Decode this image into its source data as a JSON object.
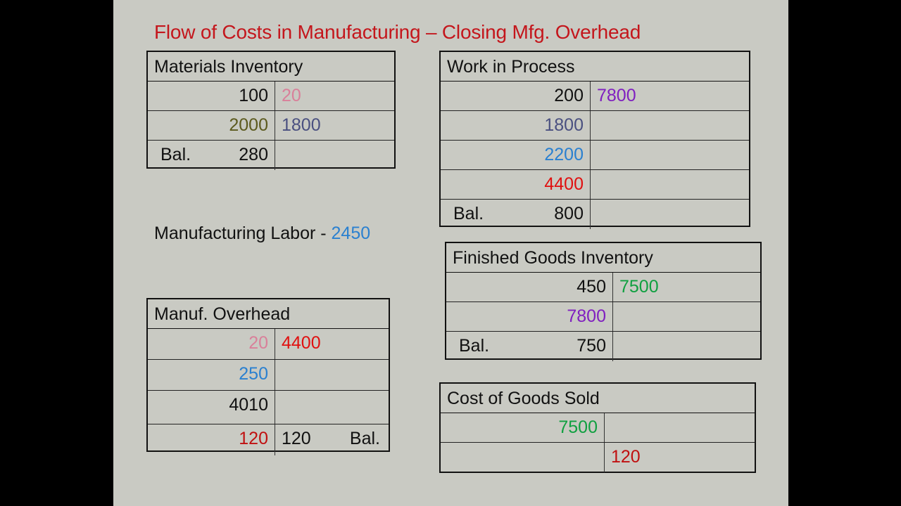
{
  "title": "Flow of Costs in Manufacturing – Closing Mfg. Overhead",
  "labor": {
    "label": "Manufacturing Labor - ",
    "amount": "2450",
    "color": "#2a80d0"
  },
  "accounts": [
    {
      "id": "acct-mat",
      "name": "materials-inventory",
      "title": "Materials Inventory",
      "rows": [
        {
          "left": "100",
          "left_color": "#111111",
          "right": "20",
          "right_color": "#d9809a"
        },
        {
          "left": "2000",
          "left_color": "#5c5a1e",
          "right": "1800",
          "right_color": "#4a5080"
        },
        {
          "left_label": "Bal.",
          "left": "280",
          "left_color": "#111111",
          "right": ""
        }
      ]
    },
    {
      "id": "acct-wip",
      "name": "work-in-process",
      "title": "Work in Process",
      "rows": [
        {
          "left": "200",
          "left_color": "#111111",
          "right": "7800",
          "right_color": "#8020c0"
        },
        {
          "left": "1800",
          "left_color": "#4a5080",
          "right": ""
        },
        {
          "left": "2200",
          "left_color": "#2a80d0",
          "right": ""
        },
        {
          "left": "4400",
          "left_color": "#e01010",
          "right": ""
        },
        {
          "left_label": "Bal.",
          "left": "800",
          "left_color": "#111111",
          "right": ""
        }
      ]
    },
    {
      "id": "acct-fg",
      "name": "finished-goods-inventory",
      "title": "Finished Goods Inventory",
      "rows": [
        {
          "left": "450",
          "left_color": "#111111",
          "right": "7500",
          "right_color": "#10a040"
        },
        {
          "left": "7800",
          "left_color": "#8020c0",
          "right": ""
        },
        {
          "left_label": "Bal.",
          "left": "750",
          "left_color": "#111111",
          "right": ""
        }
      ]
    },
    {
      "id": "acct-moh",
      "name": "manufacturing-overhead",
      "title": "Manuf. Overhead",
      "rows": [
        {
          "left": "20",
          "left_color": "#d9809a",
          "right": "4400",
          "right_color": "#e01010"
        },
        {
          "left": "250",
          "left_color": "#2a80d0",
          "right": ""
        },
        {
          "left": "4010",
          "left_color": "#111111",
          "right": ""
        },
        {
          "left": "120",
          "left_color": "#c01010",
          "right": "120",
          "right_color": "#111111",
          "right_label": "Bal."
        }
      ]
    },
    {
      "id": "acct-cogs",
      "name": "cost-of-goods-sold",
      "title": "Cost of Goods Sold",
      "rows": [
        {
          "left": "7500",
          "left_color": "#10a040",
          "right": ""
        },
        {
          "left": "",
          "right": "120",
          "right_color": "#c01010"
        }
      ]
    }
  ]
}
